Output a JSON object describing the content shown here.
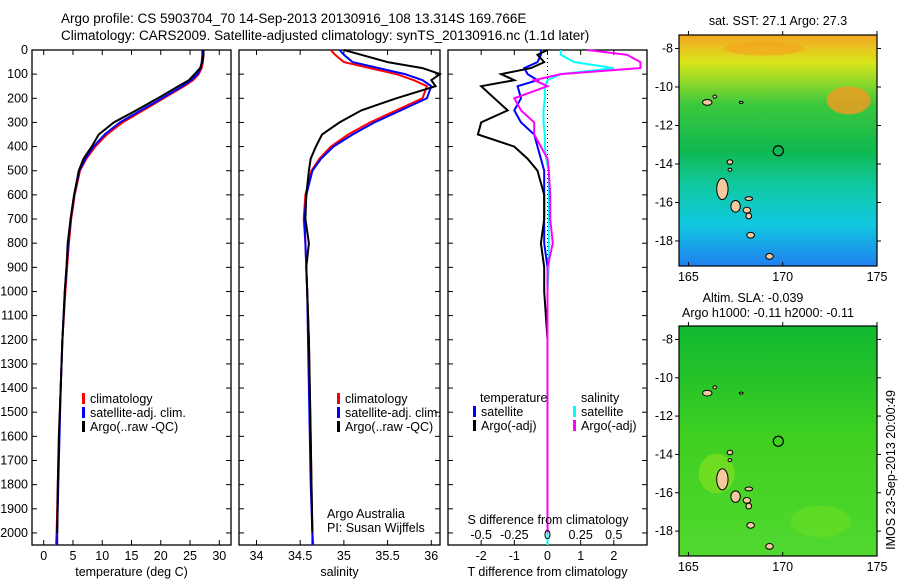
{
  "title": {
    "line1": "Argo profile: CS 5903704_70 14-Sep-2013 20130916_108 13.314S 169.766E",
    "line2": "Climatology: CARS2009. Satellite-adjusted climatology: synTS_20130916.nc (1.1d later)"
  },
  "credit": {
    "org": "Argo Australia",
    "pi": "PI: Susan Wijffels"
  },
  "timestamp": "IMOS 23-Sep-2013 20:00:49",
  "colors": {
    "climatology": "#ff0000",
    "satellite": "#0000ff",
    "argo": "#000000",
    "sal_satellite": "#00ffff",
    "sal_argo": "#ff00ff"
  },
  "chart_data": [
    {
      "type": "line",
      "name": "temperature",
      "xlabel": "temperature (deg C)",
      "xlim": [
        -2,
        32
      ],
      "ylim": [
        2050,
        0
      ],
      "xticks": [
        0,
        5,
        10,
        15,
        20,
        25,
        30
      ],
      "yticks": [
        0,
        100,
        200,
        300,
        400,
        500,
        600,
        700,
        800,
        900,
        1000,
        1100,
        1200,
        1300,
        1400,
        1500,
        1600,
        1700,
        1800,
        1900,
        2000
      ],
      "depth": [
        0,
        20,
        50,
        75,
        100,
        125,
        150,
        200,
        250,
        300,
        350,
        400,
        450,
        500,
        600,
        700,
        800,
        900,
        1000,
        1200,
        1400,
        1600,
        1800,
        2000,
        2050
      ],
      "legend": [
        "climatology",
        "satellite-adj. clim.",
        "Argo(..raw -QC)"
      ],
      "series": [
        {
          "name": "climatology",
          "color": "#ff0000",
          "values": [
            27.3,
            27.3,
            27.2,
            27,
            26.5,
            25.5,
            24,
            20.5,
            17,
            13.5,
            10.8,
            8.8,
            7.3,
            6.2,
            5.3,
            4.7,
            4.3,
            4,
            3.7,
            3.2,
            2.9,
            2.6,
            2.4,
            2.2,
            2.1
          ]
        },
        {
          "name": "satellite-adj. clim.",
          "color": "#0000ff",
          "values": [
            27.1,
            27.1,
            27,
            26.8,
            26.3,
            25.2,
            23.7,
            20.2,
            16.6,
            13,
            10.4,
            8.5,
            7.1,
            6.1,
            5.2,
            4.6,
            4.2,
            3.9,
            3.6,
            3.2,
            2.9,
            2.7,
            2.5,
            2.3,
            2.3
          ]
        },
        {
          "name": "Argo(..raw -QC)",
          "color": "#000000",
          "values": [
            27.3,
            27.3,
            27.1,
            26.7,
            25.8,
            24.8,
            23,
            19.5,
            15.8,
            12,
            9.4,
            8.2,
            6.8,
            6,
            5.2,
            4.6,
            4.1,
            3.9,
            3.6,
            3.2,
            2.9,
            2.6,
            2.4,
            2.3,
            null
          ]
        }
      ]
    },
    {
      "type": "line",
      "name": "salinity",
      "xlabel": "salinity",
      "xlim": [
        33.8,
        36.1
      ],
      "ylim": [
        2050,
        0
      ],
      "xticks": [
        34,
        34.5,
        35,
        35.5,
        36
      ],
      "legend": [
        "climatology",
        "satellite-adj. clim.",
        "Argo(..raw -QC)"
      ],
      "series": [
        {
          "name": "climatology",
          "color": "#ff0000",
          "values": [
            34.85,
            34.9,
            35.0,
            35.3,
            35.6,
            35.8,
            35.95,
            35.9,
            35.6,
            35.3,
            35.05,
            34.85,
            34.72,
            34.63,
            34.56,
            34.54,
            34.56,
            34.57,
            34.58,
            34.6,
            34.61,
            34.62,
            34.63,
            34.64,
            34.65
          ]
        },
        {
          "name": "satellite-adj. clim.",
          "color": "#0000ff",
          "values": [
            34.95,
            35.0,
            35.1,
            35.4,
            35.7,
            35.9,
            36.0,
            35.95,
            35.65,
            35.35,
            35.1,
            34.88,
            34.74,
            34.64,
            34.57,
            34.55,
            34.56,
            34.57,
            34.58,
            34.59,
            34.6,
            34.61,
            34.62,
            34.64,
            34.64
          ]
        },
        {
          "name": "Argo(..raw -QC)",
          "color": "#000000",
          "values": [
            35.0,
            35.2,
            35.5,
            35.9,
            36.1,
            36.0,
            36.05,
            35.6,
            35.2,
            34.95,
            34.75,
            34.68,
            34.62,
            34.6,
            34.57,
            34.56,
            34.6,
            34.57,
            34.58,
            34.6,
            34.61,
            34.62,
            34.63,
            34.64,
            null
          ]
        }
      ]
    },
    {
      "type": "line",
      "name": "difference",
      "xlabel": "T difference from climatology",
      "x2label": "S difference from climatology",
      "xlim": [
        -3,
        3
      ],
      "x2lim": [
        -0.75,
        0.75
      ],
      "xticks": [
        -2,
        -1,
        0,
        1,
        2
      ],
      "x2ticks": [
        "-0.5",
        "-0.25",
        "0",
        "0.25",
        "0.5"
      ],
      "x2tick_values": [
        -0.5,
        -0.25,
        0,
        0.25,
        0.5
      ],
      "legend": {
        "temperature_title": "temperature",
        "salinity_title": "salinity",
        "t_sat": "satellite",
        "t_argo": "Argo(-adj)",
        "s_sat": "satellite",
        "s_argo": "Argo(-adj)"
      },
      "series": [
        {
          "name": "T satellite",
          "axis": "T",
          "color": "#0000ff",
          "values": [
            -0.2,
            -0.2,
            -0.3,
            -0.7,
            -0.6,
            -0.3,
            -0.9,
            -0.8,
            -1,
            -0.8,
            -0.4,
            -0.3,
            -0.2,
            -0.1,
            -0.1,
            -0.1,
            -0.1,
            0,
            0,
            0,
            0,
            0,
            0,
            0,
            0
          ]
        },
        {
          "name": "T Argo(-adj)",
          "axis": "T",
          "color": "#000000",
          "values": [
            0,
            -0.3,
            -0.1,
            -0.5,
            -1.4,
            -1.0,
            -2.0,
            -1.6,
            -1.2,
            -2.0,
            -2.1,
            -1.0,
            -0.6,
            -0.3,
            -0.1,
            -0.1,
            -0.2,
            -0.1,
            -0.1,
            0,
            0,
            0,
            0,
            0,
            null
          ]
        },
        {
          "name": "S satellite",
          "axis": "S",
          "color": "#00ffff",
          "values": [
            0.1,
            0.1,
            0.2,
            0.5,
            0.1,
            0.0,
            -0.02,
            -0.02,
            -0.03,
            -0.03,
            -0.02,
            -0.02,
            -0.01,
            0.01,
            0.01,
            0.01,
            0.01,
            0.01,
            0,
            0,
            0,
            0,
            0,
            0,
            0
          ]
        },
        {
          "name": "S Argo(-adj)",
          "axis": "S",
          "color": "#ff00ff",
          "values": [
            0.3,
            0.6,
            0.7,
            0.7,
            0.1,
            -0.1,
            0.0,
            -0.25,
            -0.2,
            -0.1,
            -0.1,
            -0.05,
            0,
            0.01,
            0.02,
            0.02,
            0.04,
            0,
            0,
            0,
            0,
            0,
            0,
            0,
            null
          ]
        }
      ]
    },
    {
      "type": "heatmap",
      "name": "sst-map",
      "title": "sat. SST: 27.1 Argo: 27.3",
      "xlim": [
        164.5,
        175
      ],
      "ylim": [
        -19.3,
        -7.3
      ],
      "xticks": [
        165,
        170,
        175
      ],
      "yticks": [
        -8,
        -10,
        -12,
        -14,
        -16,
        -18
      ],
      "profile_location": [
        169.766,
        -13.314
      ]
    },
    {
      "type": "heatmap",
      "name": "sla-map",
      "title": "Altim. SLA: -0.039",
      "subtitle": "Argo h1000: -0.11 h2000: -0.11",
      "xlim": [
        164.5,
        175
      ],
      "ylim": [
        -19.3,
        -7.3
      ],
      "xticks": [
        165,
        170,
        175
      ],
      "yticks": [
        -8,
        -10,
        -12,
        -14,
        -16,
        -18
      ],
      "profile_location": [
        169.766,
        -13.314
      ]
    }
  ]
}
